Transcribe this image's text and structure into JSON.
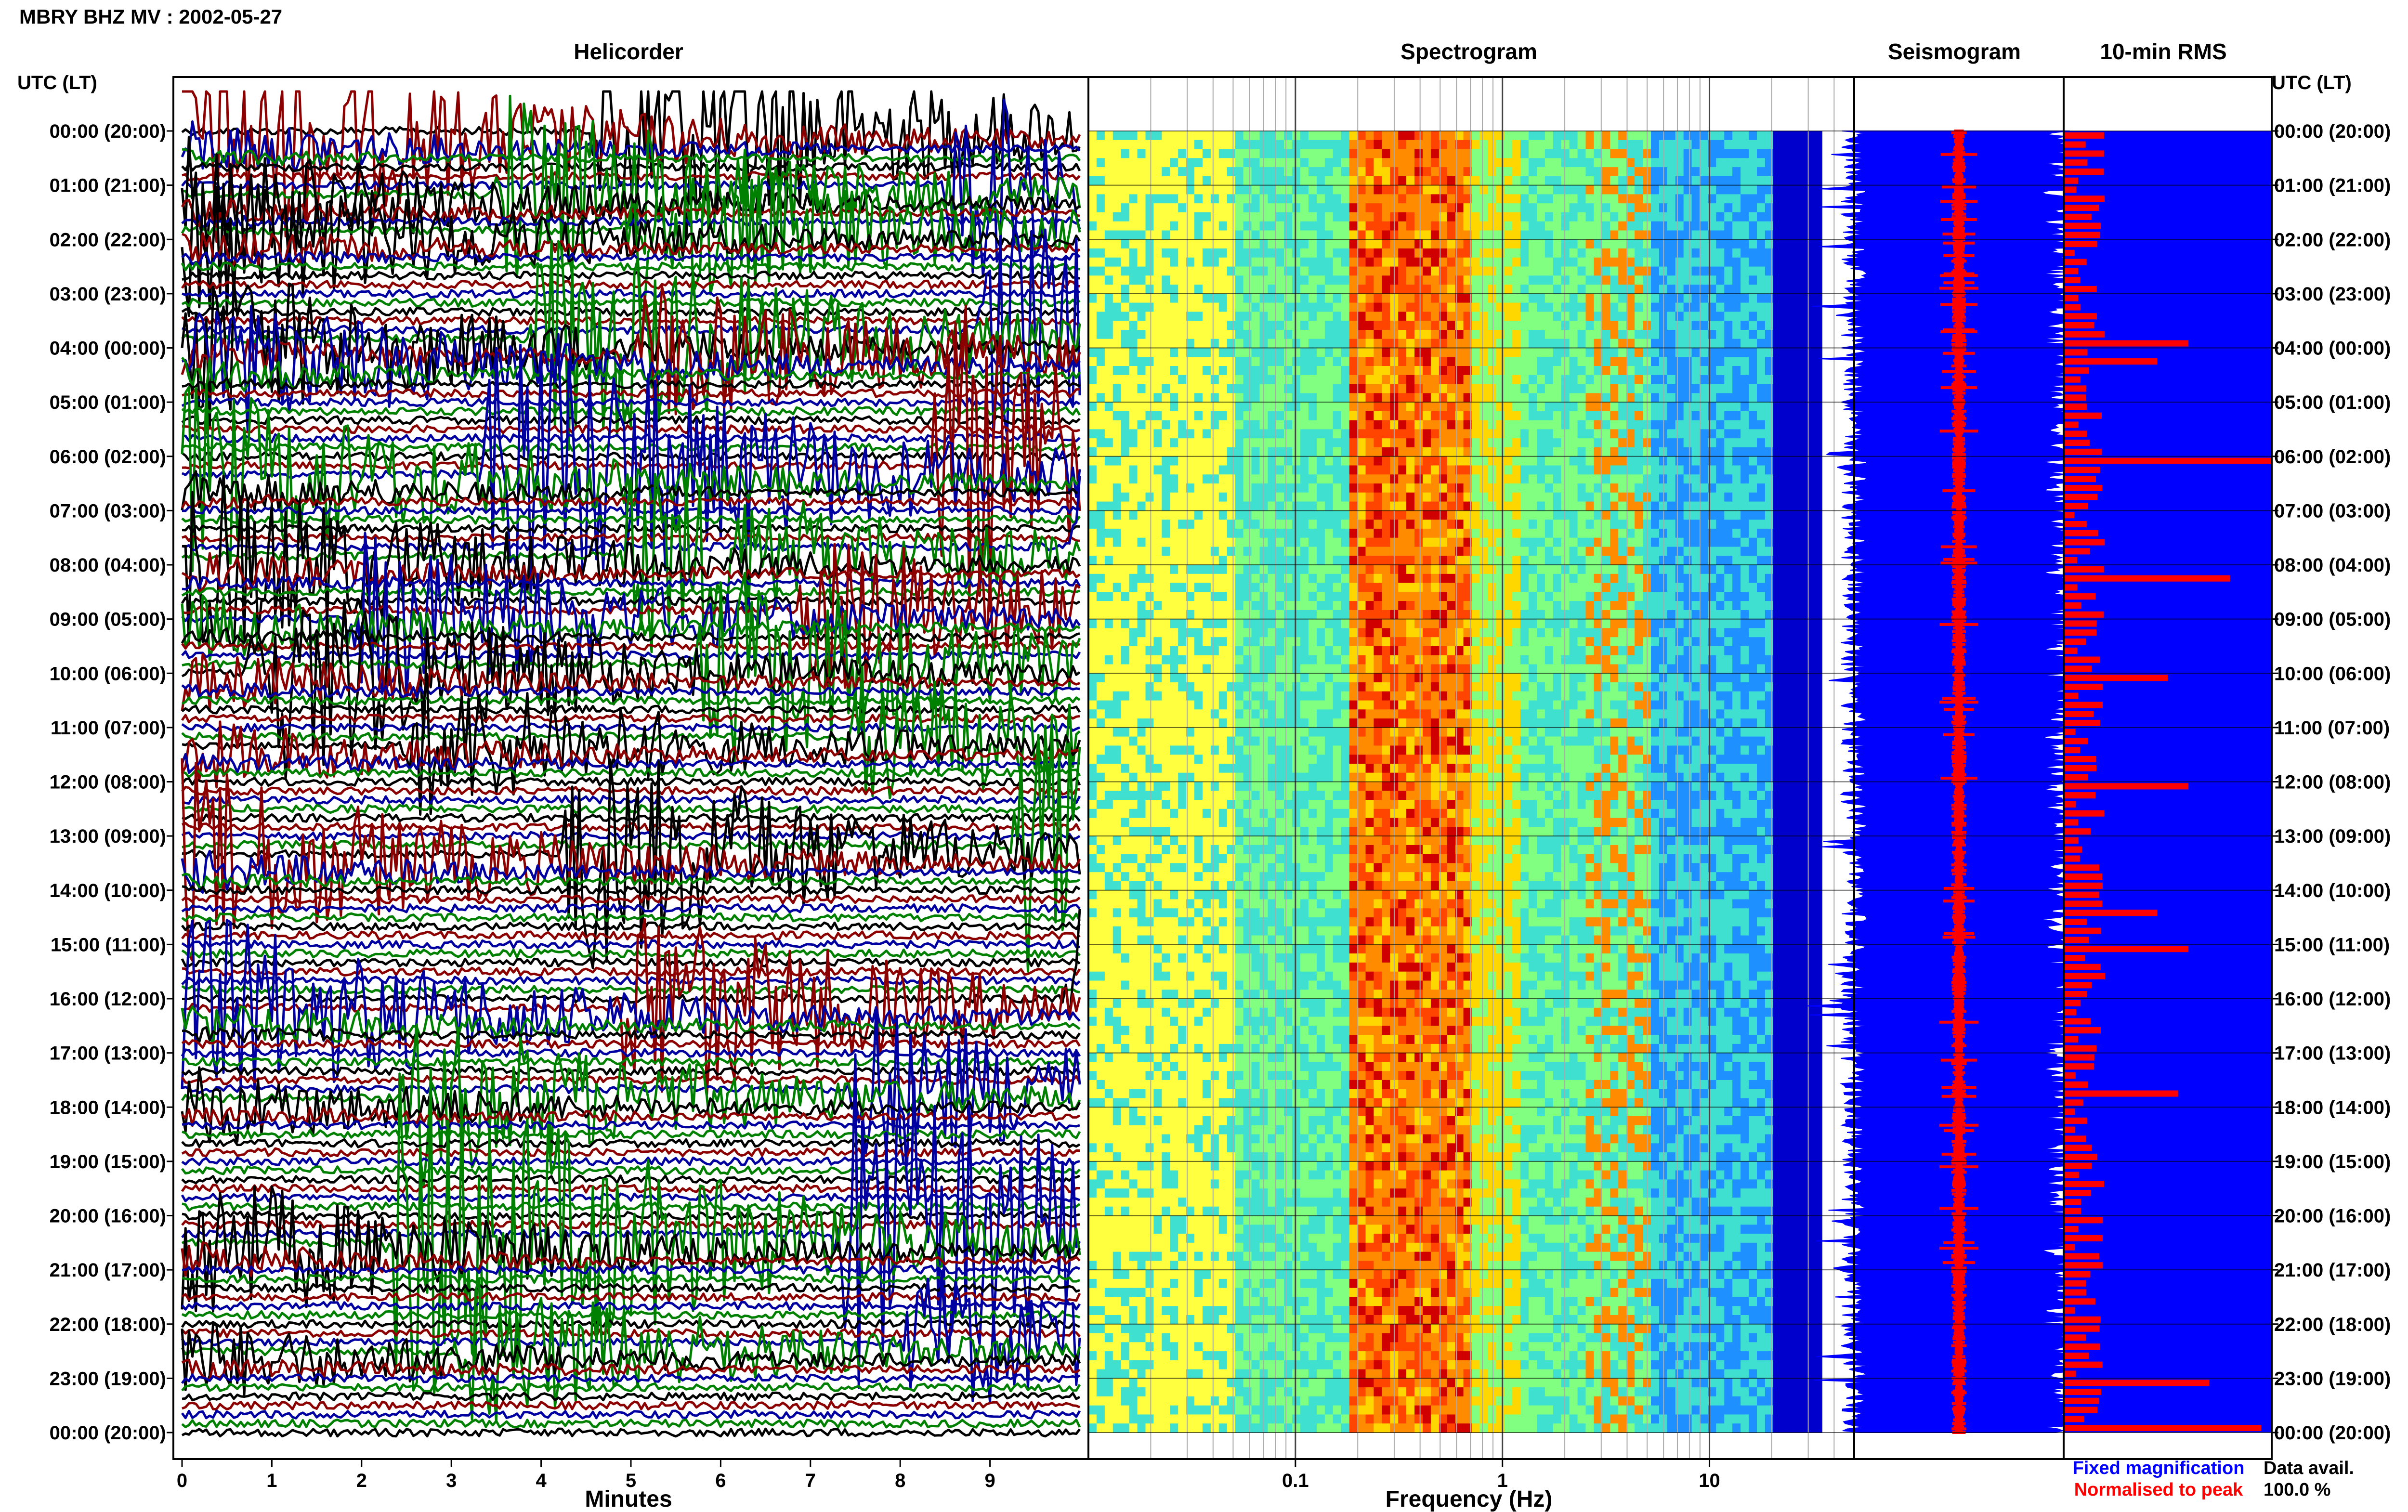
{
  "figure_title": "MBRY BHZ MV : 2002-05-27",
  "panels": {
    "helicorder": "Helicorder",
    "spectrogram": "Spectrogram",
    "seismogram": "Seismogram",
    "rms": "10-min RMS"
  },
  "left_axis_header": "UTC (LT)",
  "right_axis_header": "UTC (LT)",
  "legend": {
    "fixed": "Fixed magnification",
    "normalised": "Normalised to peak",
    "fixed_color": "#0000ff",
    "normalised_color": "#ff0000",
    "avail_label": "Data avail.",
    "avail_value": "100.0 %"
  },
  "colors": {
    "trace_cycle": [
      "#000000",
      "#8b0000",
      "#0000a0",
      "#008000"
    ],
    "spectrogram_ramp": [
      "#ffff40",
      "#40e0d0",
      "#80ff80",
      "#ffd700",
      "#ff8c00",
      "#ff4500",
      "#d00000",
      "#1e90ff",
      "#0000cd"
    ],
    "seismogram_fill": "#0000ff",
    "normalised_trace": "#ff0000",
    "rms_background": "#0000ff",
    "rms_bars": "#ff0000"
  },
  "chart_data": [
    {
      "type": "heatmap",
      "title": "Helicorder",
      "xlabel": "Minutes",
      "x_ticks": [
        "0",
        "1",
        "2",
        "3",
        "4",
        "5",
        "6",
        "7",
        "8",
        "9"
      ],
      "xlim": [
        0,
        10
      ],
      "rows_per_hour": 6,
      "row_labels": [
        "00:00 (20:00)",
        "01:00 (21:00)",
        "02:00 (22:00)",
        "03:00 (23:00)",
        "04:00 (00:00)",
        "05:00 (01:00)",
        "06:00 (02:00)",
        "07:00 (03:00)",
        "08:00 (04:00)",
        "09:00 (05:00)",
        "10:00 (06:00)",
        "11:00 (07:00)",
        "12:00 (08:00)",
        "13:00 (09:00)",
        "14:00 (10:00)",
        "15:00 (11:00)",
        "16:00 (12:00)",
        "17:00 (13:00)",
        "18:00 (14:00)",
        "19:00 (15:00)",
        "20:00 (16:00)",
        "21:00 (17:00)",
        "22:00 (18:00)",
        "23:00 (19:00)",
        "00:00 (20:00)"
      ],
      "events": [
        {
          "hour": 0.1,
          "minute": 3.5,
          "peak": 1.2
        },
        {
          "hour": 1.2,
          "minute": 5.3,
          "peak": 0.8
        },
        {
          "hour": 1.9,
          "minute": 6.2,
          "peak": 0.7
        },
        {
          "hour": 3.9,
          "minute": 4.1,
          "peak": 1.0
        },
        {
          "hour": 4.2,
          "minute": 8.4,
          "peak": 0.6
        },
        {
          "hour": 6.4,
          "minute": 3.0,
          "peak": 1.4
        },
        {
          "hour": 7.9,
          "minute": 6.1,
          "peak": 0.8
        },
        {
          "hour": 9.0,
          "minute": 4.0,
          "peak": 0.7
        },
        {
          "hour": 10.0,
          "minute": 1.8,
          "peak": 0.9
        },
        {
          "hour": 11.3,
          "minute": 7.2,
          "peak": 0.6
        },
        {
          "hour": 13.4,
          "minute": 4.8,
          "peak": 1.0
        },
        {
          "hour": 16.2,
          "minute": 8.0,
          "peak": 0.9
        },
        {
          "hour": 17.9,
          "minute": 1.2,
          "peak": 0.7
        },
        {
          "hour": 20.5,
          "minute": 4.9,
          "peak": 1.6
        },
        {
          "hour": 22.6,
          "minute": 0.4,
          "peak": 0.6
        }
      ]
    },
    {
      "type": "heatmap",
      "title": "Spectrogram",
      "xlabel": "Frequency (Hz)",
      "x_scale": "log",
      "xlim": [
        0.01,
        50
      ],
      "x_ticks": [
        {
          "value": 0.1,
          "label": "0.1"
        },
        {
          "value": 1,
          "label": "1"
        },
        {
          "value": 10,
          "label": "10"
        }
      ],
      "data_extent_hz": [
        0.01,
        35
      ],
      "dominant_band_hz": [
        0.2,
        0.7
      ],
      "secondary_band_hz": [
        2.5,
        5
      ]
    },
    {
      "type": "line",
      "title": "Seismogram",
      "series": [
        {
          "name": "Fixed magnification"
        },
        {
          "name": "Normalised to peak"
        }
      ]
    },
    {
      "type": "bar",
      "title": "10-min RMS",
      "orientation": "horizontal",
      "bins_per_hour": 6,
      "hours": 24,
      "peak_bins_relative": [
        {
          "hour": 3.8,
          "value": 0.6
        },
        {
          "hour": 4.2,
          "value": 0.45
        },
        {
          "hour": 6.0,
          "value": 1.0
        },
        {
          "hour": 8.2,
          "value": 0.8
        },
        {
          "hour": 10.0,
          "value": 0.5
        },
        {
          "hour": 12.0,
          "value": 0.6
        },
        {
          "hour": 14.4,
          "value": 0.45
        },
        {
          "hour": 15.0,
          "value": 0.6
        },
        {
          "hour": 17.6,
          "value": 0.55
        },
        {
          "hour": 23.0,
          "value": 0.7
        },
        {
          "hour": 23.9,
          "value": 0.95
        }
      ]
    }
  ]
}
